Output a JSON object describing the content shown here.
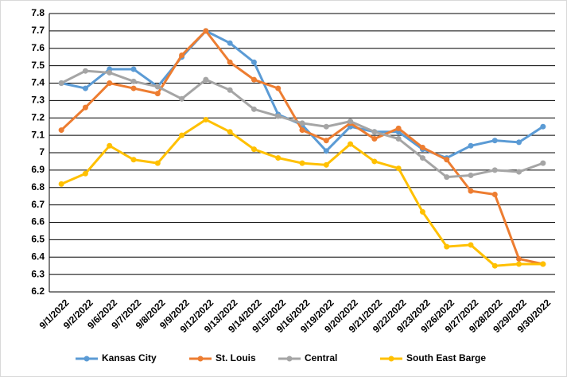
{
  "chart_data": {
    "type": "line",
    "categories": [
      "9/1/2022",
      "9/2/2022",
      "9/6/2022",
      "9/7/2022",
      "9/8/2022",
      "9/9/2022",
      "9/12/2022",
      "9/13/2022",
      "9/14/2022",
      "9/15/2022",
      "9/16/2022",
      "9/19/2022",
      "9/20/2022",
      "9/21/2022",
      "9/22/2022",
      "9/23/2022",
      "9/26/2022",
      "9/27/2022",
      "9/28/2022",
      "9/29/2022",
      "9/30/2022"
    ],
    "series": [
      {
        "name": "Kansas City",
        "color": "#5b9bd5",
        "values": [
          7.4,
          7.37,
          7.48,
          7.48,
          7.38,
          7.55,
          7.7,
          7.63,
          7.52,
          7.22,
          7.16,
          7.01,
          7.15,
          7.12,
          7.12,
          7.02,
          6.97,
          7.04,
          7.07,
          7.06,
          7.15
        ]
      },
      {
        "name": "St. Louis",
        "color": "#ed7d31",
        "values": [
          7.13,
          7.26,
          7.4,
          7.37,
          7.34,
          7.56,
          7.7,
          7.52,
          7.42,
          7.37,
          7.13,
          7.07,
          7.17,
          7.08,
          7.14,
          7.03,
          6.96,
          6.78,
          6.76,
          6.39,
          6.36
        ]
      },
      {
        "name": "Central",
        "color": "#a5a5a5",
        "values": [
          7.4,
          7.47,
          7.46,
          7.41,
          7.38,
          7.31,
          7.42,
          7.36,
          7.25,
          7.21,
          7.17,
          7.15,
          7.18,
          7.12,
          7.08,
          6.97,
          6.86,
          6.87,
          6.9,
          6.89,
          6.94
        ]
      },
      {
        "name": "South East Barge",
        "color": "#ffc000",
        "values": [
          6.82,
          6.88,
          7.04,
          6.96,
          6.94,
          7.1,
          7.19,
          7.12,
          7.02,
          6.97,
          6.94,
          6.93,
          7.05,
          6.95,
          6.91,
          6.66,
          6.46,
          6.47,
          6.35,
          6.36,
          6.36
        ]
      }
    ],
    "ylim": [
      6.2,
      7.8
    ],
    "yticks": [
      6.2,
      6.3,
      6.4,
      6.5,
      6.6,
      6.7,
      6.8,
      6.9,
      7,
      7.1,
      7.2,
      7.3,
      7.4,
      7.5,
      7.6,
      7.7,
      7.8
    ],
    "grid": true,
    "legend": "bottom"
  }
}
